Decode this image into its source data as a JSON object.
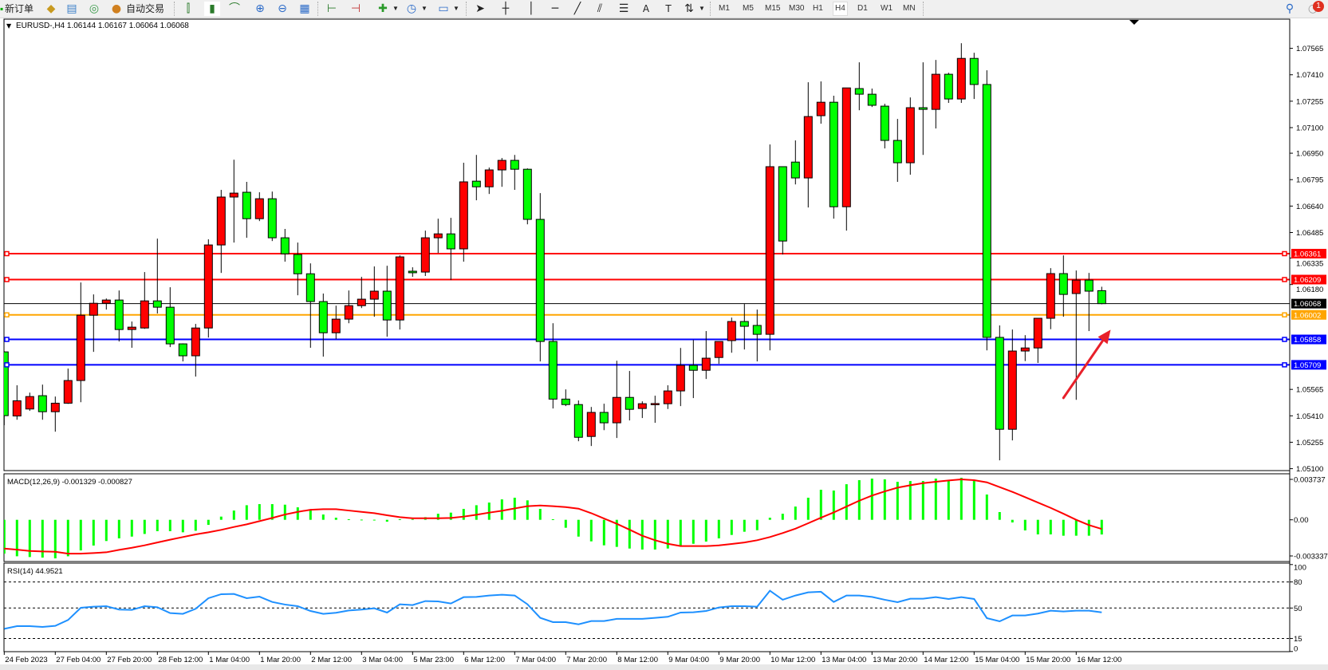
{
  "toolbar": {
    "new_order_label": "新订单",
    "auto_trading_label": "自动交易",
    "icons": [
      "new-order-icon",
      "market-watch-icon",
      "data-window-icon",
      "navigator-icon",
      "auto-trading-icon",
      "bar-chart-icon",
      "candlestick-icon",
      "line-chart-icon",
      "zoom-in-icon",
      "zoom-out-icon",
      "tile-windows-icon",
      "autoscroll-icon",
      "chart-shift-icon",
      "indicators-icon",
      "periods-icon",
      "templates-icon",
      "cursor-icon",
      "crosshair-icon",
      "vertical-line-icon",
      "horizontal-line-icon",
      "trendline-icon",
      "equidistant-channel-icon",
      "fibonacci-icon",
      "text-icon",
      "text-label-icon",
      "arrows-icon",
      "search-icon",
      "notifications-icon"
    ],
    "timeframes": [
      "M1",
      "M5",
      "M15",
      "M30",
      "H1",
      "H4",
      "D1",
      "W1",
      "MN"
    ],
    "active_timeframe": "H4",
    "notification_count": "1"
  },
  "chart": {
    "header": "EURUSD-,H4  1.06144 1.06167 1.06064 1.06068",
    "colors": {
      "bull": "#ff0000",
      "bear": "#00ff00",
      "outline": "#000000",
      "macd_hist": "#00ff00",
      "macd_signal": "#ff0000",
      "rsi": "#1e90ff"
    }
  },
  "chart_data": {
    "type": "candlestick",
    "symbol": "EURUSD-",
    "timeframe": "H4",
    "ylim": [
      1.051,
      1.07565
    ],
    "price_ticks": [
      "1.07565",
      "1.07410",
      "1.07255",
      "1.07100",
      "1.06950",
      "1.06795",
      "1.06640",
      "1.06485",
      "1.06335",
      "1.06180",
      "1.05565",
      "1.05410",
      "1.05255",
      "1.05100"
    ],
    "time_labels": [
      "24 Feb 2023",
      "27 Feb 04:00",
      "27 Feb 20:00",
      "28 Feb 12:00",
      "1 Mar 04:00",
      "1 Mar 20:00",
      "2 Mar 12:00",
      "3 Mar 04:00",
      "5 Mar 23:00",
      "6 Mar 12:00",
      "7 Mar 04:00",
      "7 Mar 20:00",
      "8 Mar 12:00",
      "9 Mar 04:00",
      "9 Mar 20:00",
      "10 Mar 12:00",
      "13 Mar 04:00",
      "13 Mar 20:00",
      "14 Mar 12:00",
      "15 Mar 04:00",
      "15 Mar 20:00",
      "16 Mar 12:00"
    ],
    "time_label_every": 4,
    "ohlc": [
      [
        1.05785,
        1.0579,
        1.05355,
        1.05411
      ],
      [
        1.05409,
        1.05589,
        1.05387,
        1.05498
      ],
      [
        1.0545,
        1.05546,
        1.05439,
        1.05523
      ],
      [
        1.05528,
        1.05593,
        1.05387,
        1.05434
      ],
      [
        1.05434,
        1.05523,
        1.05317,
        1.05484
      ],
      [
        1.05484,
        1.05687,
        1.0548,
        1.05617
      ],
      [
        1.05617,
        1.06192,
        1.0549,
        1.06
      ],
      [
        1.06,
        1.06122,
        1.05785,
        1.0607
      ],
      [
        1.0607,
        1.06098,
        1.06033,
        1.06089
      ],
      [
        1.06089,
        1.06145,
        1.05846,
        1.05916
      ],
      [
        1.05916,
        1.05963,
        1.05809,
        1.0593
      ],
      [
        1.05925,
        1.06253,
        1.0592,
        1.06084
      ],
      [
        1.06084,
        1.06449,
        1.0601,
        1.06047
      ],
      [
        1.06047,
        1.06164,
        1.05813,
        1.05832
      ],
      [
        1.05832,
        1.05835,
        1.05729,
        1.05762
      ],
      [
        1.05762,
        1.05949,
        1.0564,
        1.05925
      ],
      [
        1.05925,
        1.06445,
        1.05869,
        1.06412
      ],
      [
        1.06412,
        1.06735,
        1.06248,
        1.06693
      ],
      [
        1.06693,
        1.06912,
        1.06426,
        1.06716
      ],
      [
        1.06721,
        1.06782,
        1.06454,
        1.06566
      ],
      [
        1.06566,
        1.06721,
        1.06552,
        1.06683
      ],
      [
        1.06683,
        1.06725,
        1.06435,
        1.06454
      ],
      [
        1.06454,
        1.06506,
        1.06314,
        1.0636
      ],
      [
        1.06356,
        1.06426,
        1.06117,
        1.06243
      ],
      [
        1.06243,
        1.06304,
        1.05809,
        1.0608
      ],
      [
        1.0608,
        1.06127,
        1.05757,
        1.05897
      ],
      [
        1.05897,
        1.06056,
        1.0586,
        1.05977
      ],
      [
        1.05977,
        1.06145,
        1.05953,
        1.06056
      ],
      [
        1.06056,
        1.06225,
        1.06042,
        1.06094
      ],
      [
        1.06094,
        1.06286,
        1.05991,
        1.06141
      ],
      [
        1.06141,
        1.0629,
        1.05874,
        1.05972
      ],
      [
        1.05972,
        1.06351,
        1.05916,
        1.06342
      ],
      [
        1.06258,
        1.06281,
        1.06225,
        1.06249
      ],
      [
        1.06253,
        1.06496,
        1.0623,
        1.06454
      ],
      [
        1.06454,
        1.06566,
        1.06365,
        1.06477
      ],
      [
        1.06477,
        1.06571,
        1.06206,
        1.06389
      ],
      [
        1.06389,
        1.06894,
        1.06314,
        1.06782
      ],
      [
        1.06786,
        1.0694,
        1.06674,
        1.06753
      ],
      [
        1.06753,
        1.06866,
        1.06711,
        1.06852
      ],
      [
        1.06852,
        1.06922,
        1.06753,
        1.06908
      ],
      [
        1.06908,
        1.0694,
        1.06735,
        1.06856
      ],
      [
        1.06856,
        1.06861,
        1.06533,
        1.06562
      ],
      [
        1.06562,
        1.06716,
        1.05729,
        1.05846
      ],
      [
        1.05846,
        1.05953,
        1.05453,
        1.05508
      ],
      [
        1.05508,
        1.05565,
        1.05467,
        1.05476
      ],
      [
        1.05476,
        1.055,
        1.05261,
        1.05284
      ],
      [
        1.05289,
        1.05462,
        1.05233,
        1.0543
      ],
      [
        1.0543,
        1.05481,
        1.05326,
        1.05369
      ],
      [
        1.05369,
        1.05733,
        1.0528,
        1.05518
      ],
      [
        1.05518,
        1.05673,
        1.05383,
        1.05448
      ],
      [
        1.05453,
        1.05495,
        1.05397,
        1.05481
      ],
      [
        1.05481,
        1.05528,
        1.05369,
        1.05482
      ],
      [
        1.05481,
        1.05589,
        1.0545,
        1.05556
      ],
      [
        1.05556,
        1.05808,
        1.05467,
        1.05706
      ],
      [
        1.05706,
        1.05855,
        1.05514,
        1.05677
      ],
      [
        1.05677,
        1.05907,
        1.05626,
        1.05748
      ],
      [
        1.05752,
        1.05846,
        1.05715,
        1.05846
      ],
      [
        1.05851,
        1.05986,
        1.0578,
        1.05963
      ],
      [
        1.05963,
        1.06066,
        1.05799,
        1.05935
      ],
      [
        1.0594,
        1.06033,
        1.05729,
        1.05888
      ],
      [
        1.05888,
        1.07001,
        1.05794,
        1.06871
      ],
      [
        1.06871,
        1.06871,
        1.06356,
        1.06435
      ],
      [
        1.06898,
        1.07025,
        1.06767,
        1.06805
      ],
      [
        1.06805,
        1.07366,
        1.06632,
        1.07165
      ],
      [
        1.0717,
        1.07371,
        1.07123,
        1.07249
      ],
      [
        1.07249,
        1.07287,
        1.06566,
        1.06636
      ],
      [
        1.06636,
        1.07333,
        1.06496,
        1.07333
      ],
      [
        1.07329,
        1.07483,
        1.07202,
        1.07296
      ],
      [
        1.07296,
        1.07329,
        1.07221,
        1.07231
      ],
      [
        1.07226,
        1.0724,
        1.06978,
        1.07025
      ],
      [
        1.07025,
        1.07151,
        1.06782,
        1.06894
      ],
      [
        1.06894,
        1.07277,
        1.06824,
        1.07217
      ],
      [
        1.07217,
        1.07483,
        1.0694,
        1.07207
      ],
      [
        1.07207,
        1.07497,
        1.07095,
        1.07413
      ],
      [
        1.07413,
        1.07422,
        1.07245,
        1.07268
      ],
      [
        1.07268,
        1.07595,
        1.07245,
        1.07506
      ],
      [
        1.07506,
        1.07539,
        1.07268,
        1.07353
      ],
      [
        1.07353,
        1.07436,
        1.05794,
        1.0587
      ],
      [
        1.0587,
        1.0594,
        1.05149,
        1.05331
      ],
      [
        1.05331,
        1.05916,
        1.05266,
        1.0579
      ],
      [
        1.0579,
        1.05883,
        1.05731,
        1.05808
      ],
      [
        1.05808,
        1.05982,
        1.0572,
        1.05982
      ],
      [
        1.05982,
        1.06276,
        1.05918,
        1.06244
      ],
      [
        1.06244,
        1.06351,
        1.05991,
        1.06122
      ],
      [
        1.06127,
        1.06262,
        1.05504,
        1.06206
      ],
      [
        1.06206,
        1.06248,
        1.05907,
        1.06141
      ],
      [
        1.06144,
        1.06167,
        1.06064,
        1.06068
      ]
    ],
    "current_price": {
      "value": 1.06068,
      "label": "1.06068",
      "color": "#000000"
    },
    "levels": [
      {
        "value": 1.06361,
        "label": "1.06361",
        "color": "#ff0000"
      },
      {
        "value": 1.06209,
        "label": "1.06209",
        "color": "#ff0000"
      },
      {
        "value": 1.06002,
        "label": "1.06002",
        "color": "#ffa500"
      },
      {
        "value": 1.05858,
        "label": "1.05858",
        "color": "#0000ff"
      },
      {
        "value": 1.05709,
        "label": "1.05709",
        "color": "#0000ff"
      }
    ],
    "annotation": {
      "type": "arrow",
      "color": "#e8202a",
      "from": {
        "candle": 83,
        "price": 1.05515
      },
      "to": {
        "candle": 86.7,
        "price": 1.05915
      }
    },
    "macd": {
      "label": "MACD(12,26,9) -0.001329 -0.000827",
      "ticks": [
        "0.003737",
        "0.00",
        "-0.003337"
      ],
      "ylim": [
        -0.003337,
        0.003737
      ],
      "histogram": [
        -0.00306,
        -0.0033,
        -0.00337,
        -0.00342,
        -0.00349,
        -0.0033,
        -0.00277,
        -0.00233,
        -0.00192,
        -0.00168,
        -0.00152,
        -0.00128,
        -0.00103,
        -0.00103,
        -0.00113,
        -0.00099,
        -0.00046,
        0.00029,
        0.00084,
        0.00132,
        0.00142,
        0.00142,
        0.00137,
        0.00113,
        0.0009,
        0.00048,
        0.00019,
        5e-05,
        2e-05,
        1e-05,
        -0.00017,
        5e-05,
        7e-05,
        0.00024,
        0.00055,
        0.00065,
        0.00099,
        0.00132,
        0.00156,
        0.00185,
        0.002,
        0.00176,
        0.00099,
        5e-05,
        -0.00072,
        -0.00152,
        -0.00195,
        -0.00231,
        -0.00245,
        -0.0026,
        -0.00269,
        -0.00269,
        -0.0026,
        -0.00236,
        -0.00217,
        -0.00197,
        -0.00168,
        -0.00137,
        -0.00108,
        -0.00094,
        0.00019,
        0.00055,
        0.0012,
        0.002,
        0.00272,
        0.00265,
        0.00322,
        0.00359,
        0.00373,
        0.00366,
        0.00344,
        0.00351,
        0.00351,
        0.00373,
        0.00359,
        0.0038,
        0.00359,
        0.00229,
        0.0007,
        -0.00024,
        -0.00096,
        -0.00132,
        -0.00132,
        -0.00144,
        -0.00144,
        -0.00144,
        -0.001329
      ],
      "signal": [
        -0.0026,
        -0.0027,
        -0.00282,
        -0.00286,
        -0.00289,
        -0.00306,
        -0.00306,
        -0.00301,
        -0.00294,
        -0.00272,
        -0.00253,
        -0.00231,
        -0.00205,
        -0.0018,
        -0.00156,
        -0.00132,
        -0.00113,
        -0.00091,
        -0.00065,
        -0.00041,
        -0.00012,
        0.00017,
        0.00048,
        0.00072,
        0.00091,
        0.00096,
        0.00096,
        0.00084,
        0.00072,
        0.0006,
        0.00041,
        0.00024,
        0.00014,
        0.00014,
        0.00014,
        0.00017,
        0.00029,
        0.00046,
        0.00065,
        0.00082,
        0.00103,
        0.00123,
        0.0013,
        0.00123,
        0.00115,
        0.00101,
        0.0006,
        0.00012,
        -0.00036,
        -0.00089,
        -0.00144,
        -0.00185,
        -0.00217,
        -0.00238,
        -0.00238,
        -0.00238,
        -0.00231,
        -0.00219,
        -0.00205,
        -0.00185,
        -0.00156,
        -0.0012,
        -0.0008,
        -0.00031,
        0.00019,
        0.00067,
        0.0012,
        0.00173,
        0.00219,
        0.00257,
        0.00291,
        0.00313,
        0.00332,
        0.00344,
        0.00356,
        0.00366,
        0.00359,
        0.00339,
        0.00296,
        0.00253,
        0.00205,
        0.00156,
        0.00108,
        0.00055,
        0.0,
        -0.00048,
        -0.000827
      ]
    },
    "rsi": {
      "label": "RSI(14) 44.9521",
      "ticks": [
        "100",
        "80",
        "50",
        "15",
        "0"
      ],
      "levels": [
        80,
        50,
        15
      ],
      "ylim": [
        0,
        100
      ],
      "values": [
        26.1,
        29.2,
        29.2,
        28.3,
        29.5,
        36.2,
        50.3,
        51.5,
        52.1,
        48.2,
        47.9,
        52.1,
        50.9,
        44.2,
        43.3,
        49.1,
        61.3,
        65.9,
        66.2,
        61.3,
        63.1,
        57.0,
        54.0,
        52.1,
        46.6,
        43.3,
        44.5,
        47.2,
        48.2,
        49.7,
        44.8,
        54.3,
        53.4,
        58.0,
        57.6,
        55.2,
        62.5,
        62.8,
        64.4,
        65.3,
        64.4,
        54.3,
        38.7,
        33.8,
        33.8,
        31.3,
        35.0,
        35.0,
        37.5,
        37.5,
        37.5,
        38.7,
        39.9,
        44.8,
        45.1,
        46.6,
        50.6,
        52.1,
        52.1,
        51.5,
        69.9,
        59.5,
        64.4,
        68.0,
        68.7,
        57.0,
        64.4,
        64.4,
        62.8,
        59.5,
        56.7,
        60.7,
        60.7,
        62.5,
        60.4,
        62.5,
        60.4,
        38.4,
        34.7,
        41.4,
        41.4,
        43.6,
        46.9,
        46.0,
        46.9,
        46.9,
        44.9521
      ]
    }
  }
}
